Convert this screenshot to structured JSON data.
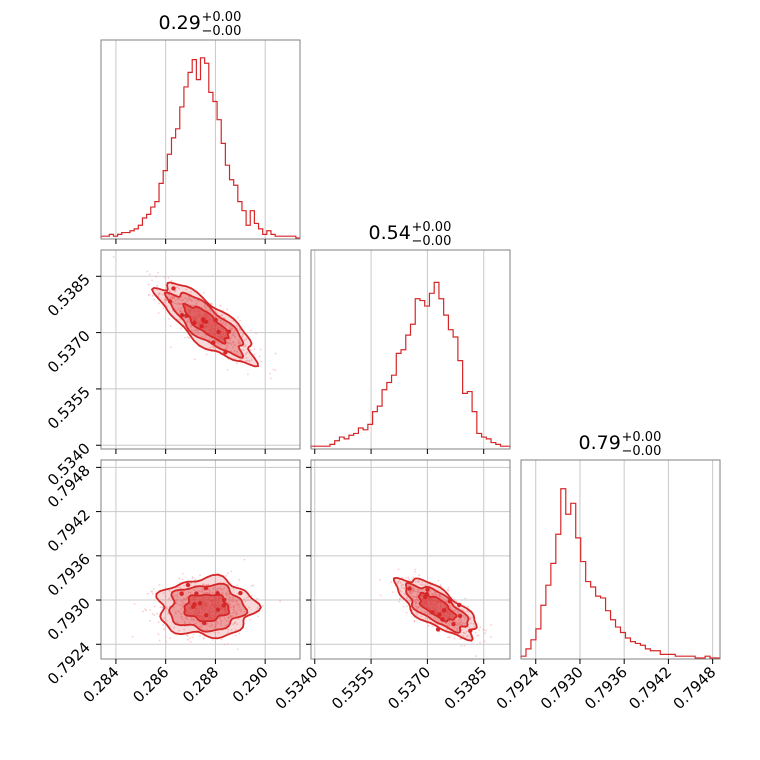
{
  "accent_color": "#d62728",
  "chart_data": {
    "type": "corner",
    "parameters": [
      {
        "title": {
          "value": "0.29",
          "plus": "+0.00",
          "minus": "−0.00"
        },
        "range": [
          0.2834,
          0.2914
        ],
        "ticks": [
          "0.284",
          "0.286",
          "0.288",
          "0.290"
        ],
        "tick_values": [
          0.284,
          0.286,
          0.288,
          0.29
        ],
        "histogram": [
          0.01,
          0.01,
          0.02,
          0.01,
          0.02,
          0.03,
          0.03,
          0.04,
          0.05,
          0.07,
          0.11,
          0.13,
          0.17,
          0.2,
          0.3,
          0.37,
          0.46,
          0.55,
          0.6,
          0.72,
          0.83,
          0.91,
          0.98,
          0.87,
          0.99,
          0.96,
          0.8,
          0.75,
          0.65,
          0.52,
          0.4,
          0.32,
          0.29,
          0.2,
          0.15,
          0.07,
          0.15,
          0.08,
          0.05,
          0.02,
          0.04,
          0.02,
          0.01,
          0.01,
          0.01,
          0.01,
          0.01,
          0.0
        ]
      },
      {
        "title": {
          "value": "0.54",
          "plus": "+0.00",
          "minus": "−0.00"
        },
        "range": [
          0.5339,
          0.5392
        ],
        "ticks": [
          "0.5340",
          "0.5355",
          "0.5370",
          "0.5385"
        ],
        "tick_values": [
          0.534,
          0.5355,
          0.537,
          0.5385
        ],
        "histogram": [
          0.01,
          0.01,
          0.01,
          0.01,
          0.02,
          0.04,
          0.06,
          0.05,
          0.07,
          0.08,
          0.11,
          0.1,
          0.13,
          0.2,
          0.23,
          0.32,
          0.36,
          0.4,
          0.52,
          0.54,
          0.62,
          0.68,
          0.82,
          0.81,
          0.78,
          0.85,
          0.91,
          0.82,
          0.73,
          0.65,
          0.61,
          0.48,
          0.3,
          0.31,
          0.2,
          0.08,
          0.06,
          0.05,
          0.03,
          0.02,
          0.01,
          0.01
        ]
      },
      {
        "title": {
          "value": "0.79",
          "plus": "+0.00",
          "minus": "−0.00"
        },
        "range": [
          0.7922,
          0.7949
        ],
        "ticks": [
          "0.7924",
          "0.7930",
          "0.7936",
          "0.7942",
          "0.7948"
        ],
        "tick_values": [
          0.7924,
          0.793,
          0.7936,
          0.7942,
          0.7948
        ],
        "histogram": [
          0.01,
          0.05,
          0.1,
          0.16,
          0.29,
          0.4,
          0.52,
          0.68,
          0.93,
          0.79,
          0.85,
          0.66,
          0.53,
          0.42,
          0.39,
          0.34,
          0.33,
          0.26,
          0.21,
          0.17,
          0.14,
          0.11,
          0.09,
          0.08,
          0.07,
          0.05,
          0.04,
          0.04,
          0.02,
          0.02,
          0.02,
          0.01,
          0.01,
          0.01,
          0.01,
          0.0,
          0.0,
          0.01,
          0.0,
          0.0
        ]
      }
    ],
    "pairs": [
      {
        "x_param": 0,
        "y_param": 1,
        "center": [
          0.28764,
          0.53725
        ],
        "sigma": [
          0.00088,
          0.00048
        ],
        "correlation": -0.8,
        "contour_levels_sigma": [
          1,
          1.7,
          2.2
        ]
      },
      {
        "x_param": 0,
        "y_param": 2,
        "center": [
          0.28764,
          0.7929
        ],
        "sigma": [
          0.00088,
          0.00018
        ],
        "correlation": 0.0,
        "contour_levels_sigma": [
          1,
          1.7,
          2.2
        ]
      },
      {
        "x_param": 1,
        "y_param": 2,
        "center": [
          0.53725,
          0.7929
        ],
        "sigma": [
          0.00048,
          0.00018
        ],
        "correlation": -0.72,
        "contour_levels_sigma": [
          1,
          1.7,
          2.2
        ]
      }
    ]
  }
}
